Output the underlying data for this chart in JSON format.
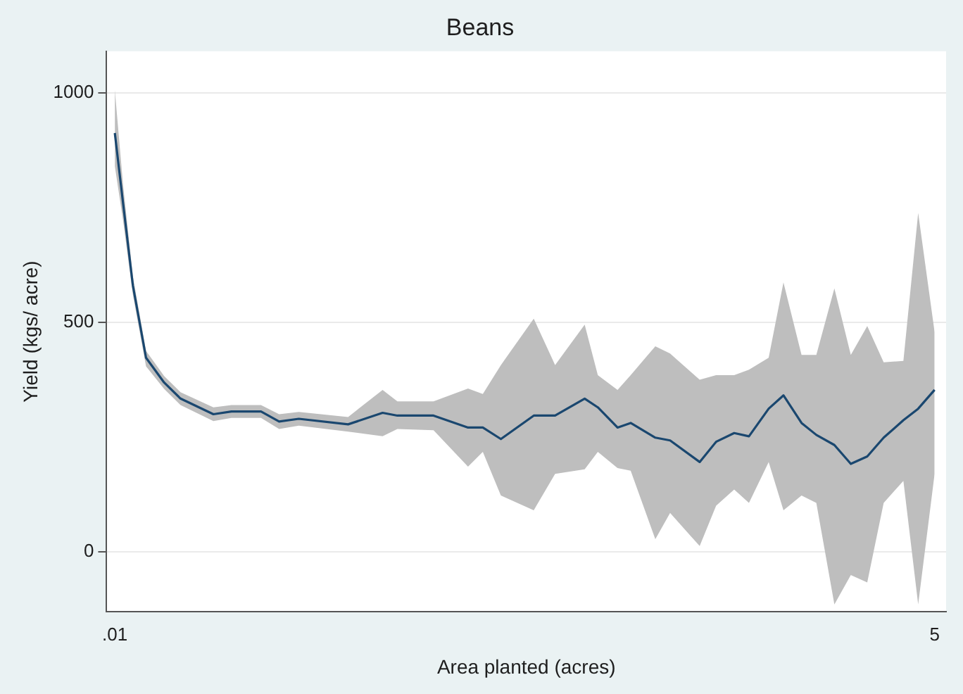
{
  "chart_data": {
    "type": "line",
    "title": "Beans",
    "xlabel": "Area planted (acres)",
    "ylabel": "Yield (kgs/ acre)",
    "x": [
      0.01,
      0.06,
      0.12,
      0.2,
      0.31,
      0.41,
      0.61,
      0.72,
      0.9,
      1.01,
      1.13,
      1.43,
      1.64,
      1.73,
      1.95,
      2.16,
      2.25,
      2.36,
      2.56,
      2.69,
      2.87,
      2.95,
      3.07,
      3.15,
      3.3,
      3.39,
      3.57,
      3.67,
      3.78,
      3.87,
      3.99,
      4.08,
      4.19,
      4.28,
      4.39,
      4.49,
      4.59,
      4.69,
      4.81,
      4.9,
      5
    ],
    "series": [
      {
        "color": "#1a476f",
        "values": [
          912,
          760,
          580,
          423,
          369,
          334,
          300,
          306,
          306,
          284,
          290,
          278,
          303,
          297,
          297,
          271,
          271,
          246,
          297,
          297,
          334,
          315,
          271,
          281,
          249,
          243,
          196,
          240,
          259,
          252,
          312,
          341,
          281,
          255,
          233,
          192,
          208,
          249,
          287,
          312,
          353
        ],
        "lower": [
          840,
          722,
          560,
          404,
          355,
          320,
          285,
          292,
          292,
          268,
          275,
          262,
          252,
          268,
          265,
          186,
          218,
          123,
          91,
          170,
          180,
          218,
          183,
          177,
          28,
          85,
          13,
          101,
          136,
          107,
          196,
          91,
          123,
          107,
          -114,
          -50,
          -66,
          107,
          155,
          -114,
          170
        ],
        "upper": [
          1006,
          800,
          600,
          438,
          383,
          348,
          315,
          320,
          320,
          300,
          305,
          294,
          353,
          328,
          328,
          356,
          344,
          407,
          508,
          407,
          495,
          385,
          353,
          385,
          448,
          432,
          375,
          385,
          385,
          397,
          423,
          587,
          429,
          429,
          574,
          429,
          492,
          413,
          416,
          738,
          479
        ]
      }
    ],
    "xlim": [
      -0.04,
      5.07
    ],
    "xticks": [
      {
        "value": 0.01,
        "label": ".01"
      },
      5
    ],
    "ylim": [
      -130,
      1090
    ],
    "yticks": [
      0,
      500,
      1000
    ],
    "grid": "y",
    "legend": false,
    "marker": "none",
    "line_style": "solid"
  }
}
